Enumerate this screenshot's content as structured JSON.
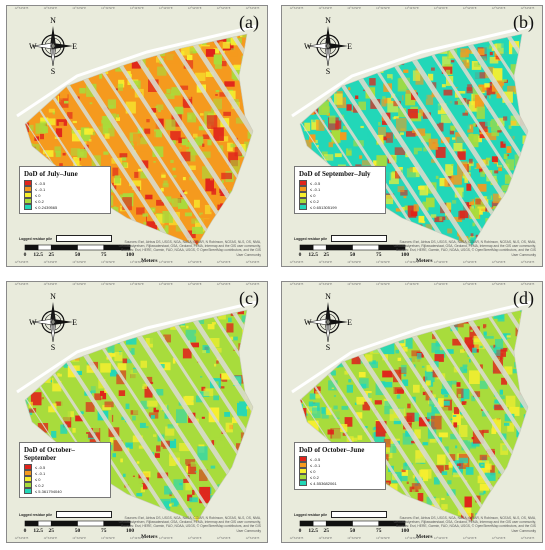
{
  "colors": {
    "background": "#e9ebdc",
    "class_red": "#e0241b",
    "class_orange": "#f59a1e",
    "class_yellow": "#f7ef2f",
    "class_green": "#a8dc3c",
    "class_cyan": "#22d7b8",
    "stripe": "#d9dbcd"
  },
  "compass": {
    "n": "N",
    "s": "S",
    "e": "E",
    "w": "W"
  },
  "legend_classes": [
    "≤ -0.5",
    "≤ -0.1",
    "≤ 0",
    "≤ 0.2"
  ],
  "logged_label": "Logged residue pile",
  "scalebar": {
    "ticks": [
      "0",
      "12.5",
      "25",
      "50",
      "75",
      "100"
    ],
    "unit": "Meters"
  },
  "attribution": "Sources: Esri, Airbus DS, USGS, NGA, NASA, CGIAR, N Robinson, NCEAS, NLS, OS, NMA, Geodatastyrelsen, Rijkswaterstaat, GSA, Geoland, FEMA, Intermap and the GIS user community, Sources: Esri, HERE, Garmin, FAO, NOAA, USGS, © OpenStreetMap contributors, and the GIS User Community",
  "panels": [
    {
      "id": "a",
      "label": "(a)",
      "title": "DoD of July–June",
      "max_value": "≤ 0.2439565",
      "tick_text": "12°34'56\"E",
      "mix": [
        "orange",
        "green",
        "yellow",
        "green",
        "orange",
        "red"
      ]
    },
    {
      "id": "b",
      "label": "(b)",
      "title": "DoD of September–July",
      "max_value": "≤ 0.651305199",
      "tick_text": "12°34'56\"E",
      "mix": [
        "cyan",
        "yellow",
        "green",
        "orange",
        "cyan",
        "red"
      ]
    },
    {
      "id": "c",
      "label": "(c)",
      "title": "DoD of October–September",
      "max_value": "≤ 5.361794040",
      "tick_text": "12°34'56\"E",
      "mix": [
        "green",
        "yellow",
        "green",
        "green",
        "cyan",
        "red"
      ]
    },
    {
      "id": "d",
      "label": "(d)",
      "title": "DoD of October–June",
      "max_value": "≤ 4.553682061",
      "tick_text": "12°34'56\"E",
      "mix": [
        "green",
        "cyan",
        "yellow",
        "cyan",
        "green",
        "red"
      ]
    }
  ]
}
